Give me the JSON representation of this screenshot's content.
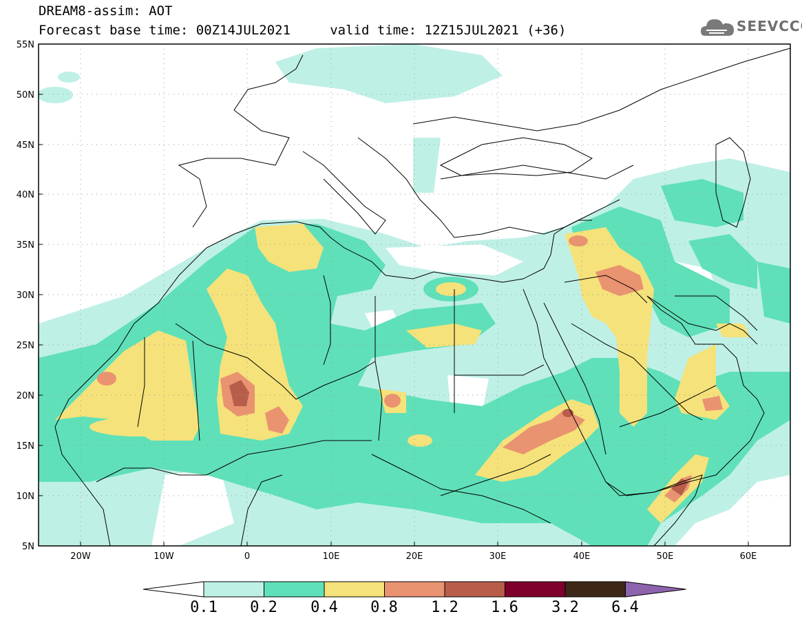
{
  "header": {
    "title_line1": "DREAM8-assim: AOT",
    "title_line2": "Forecast base time: 00Z14JUL2021     valid time: 12Z15JUL2021 (+36)",
    "logo_text": "SEEVCCC"
  },
  "map": {
    "lon_range": [
      -25,
      65
    ],
    "lat_range": [
      5,
      55
    ],
    "lat_labels": [
      "55N",
      "50N",
      "45N",
      "40N",
      "35N",
      "30N",
      "25N",
      "20N",
      "15N",
      "10N",
      "5N"
    ],
    "lon_labels": [
      "20W",
      "10W",
      "0",
      "10E",
      "20E",
      "30E",
      "40E",
      "50E",
      "60E"
    ],
    "grid": "dotted"
  },
  "colorbar": {
    "labels": [
      "0.1",
      "0.2",
      "0.4",
      "0.8",
      "1.2",
      "1.6",
      "3.2",
      "6.4"
    ],
    "colors": [
      "#ffffff",
      "#bff0e6",
      "#5fe0b9",
      "#f5e27a",
      "#e99370",
      "#b85d4a",
      "#80002d",
      "#3d2817",
      "#8e63ae"
    ]
  },
  "colors": {
    "c1": "#bff0e6",
    "c2": "#5fe0b9",
    "c3": "#f5e27a",
    "c4": "#e99370",
    "c5": "#b85d4a",
    "c6": "#80002d"
  }
}
